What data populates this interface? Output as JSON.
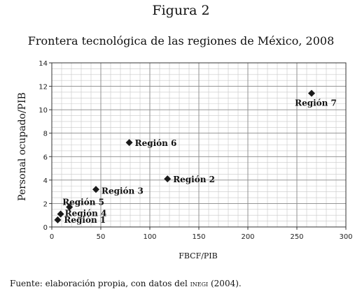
{
  "figure_label": "Figura 2",
  "source_note": {
    "prefix": "Fuente: elaboración propia, con datos del ",
    "org": "inegi",
    "suffix": " (2004)."
  },
  "chart_data": {
    "type": "scatter",
    "title": "Frontera tecnológica de las regiones de México, 2008",
    "xlabel": "FBCF/PIB",
    "ylabel": "Personal ocupado/PIB",
    "xlim": [
      0,
      300
    ],
    "ylim": [
      0,
      14
    ],
    "xticks": [
      0,
      50,
      100,
      150,
      200,
      250,
      300
    ],
    "yticks": [
      0,
      2,
      4,
      6,
      8,
      10,
      12,
      14
    ],
    "grid": true,
    "marker": "diamond",
    "marker_color": "#1a1a1a",
    "points": [
      {
        "label": "Región 1",
        "x": 6,
        "y": 0.6
      },
      {
        "label": "Región 4",
        "x": 9,
        "y": 1.1
      },
      {
        "label": "Región 5",
        "x": 18,
        "y": 1.7
      },
      {
        "label": "Región 3",
        "x": 45,
        "y": 3.2
      },
      {
        "label": "Región 6",
        "x": 79,
        "y": 7.2
      },
      {
        "label": "Región 2",
        "x": 118,
        "y": 4.1
      },
      {
        "label": "Región 7",
        "x": 265,
        "y": 11.4
      }
    ]
  }
}
